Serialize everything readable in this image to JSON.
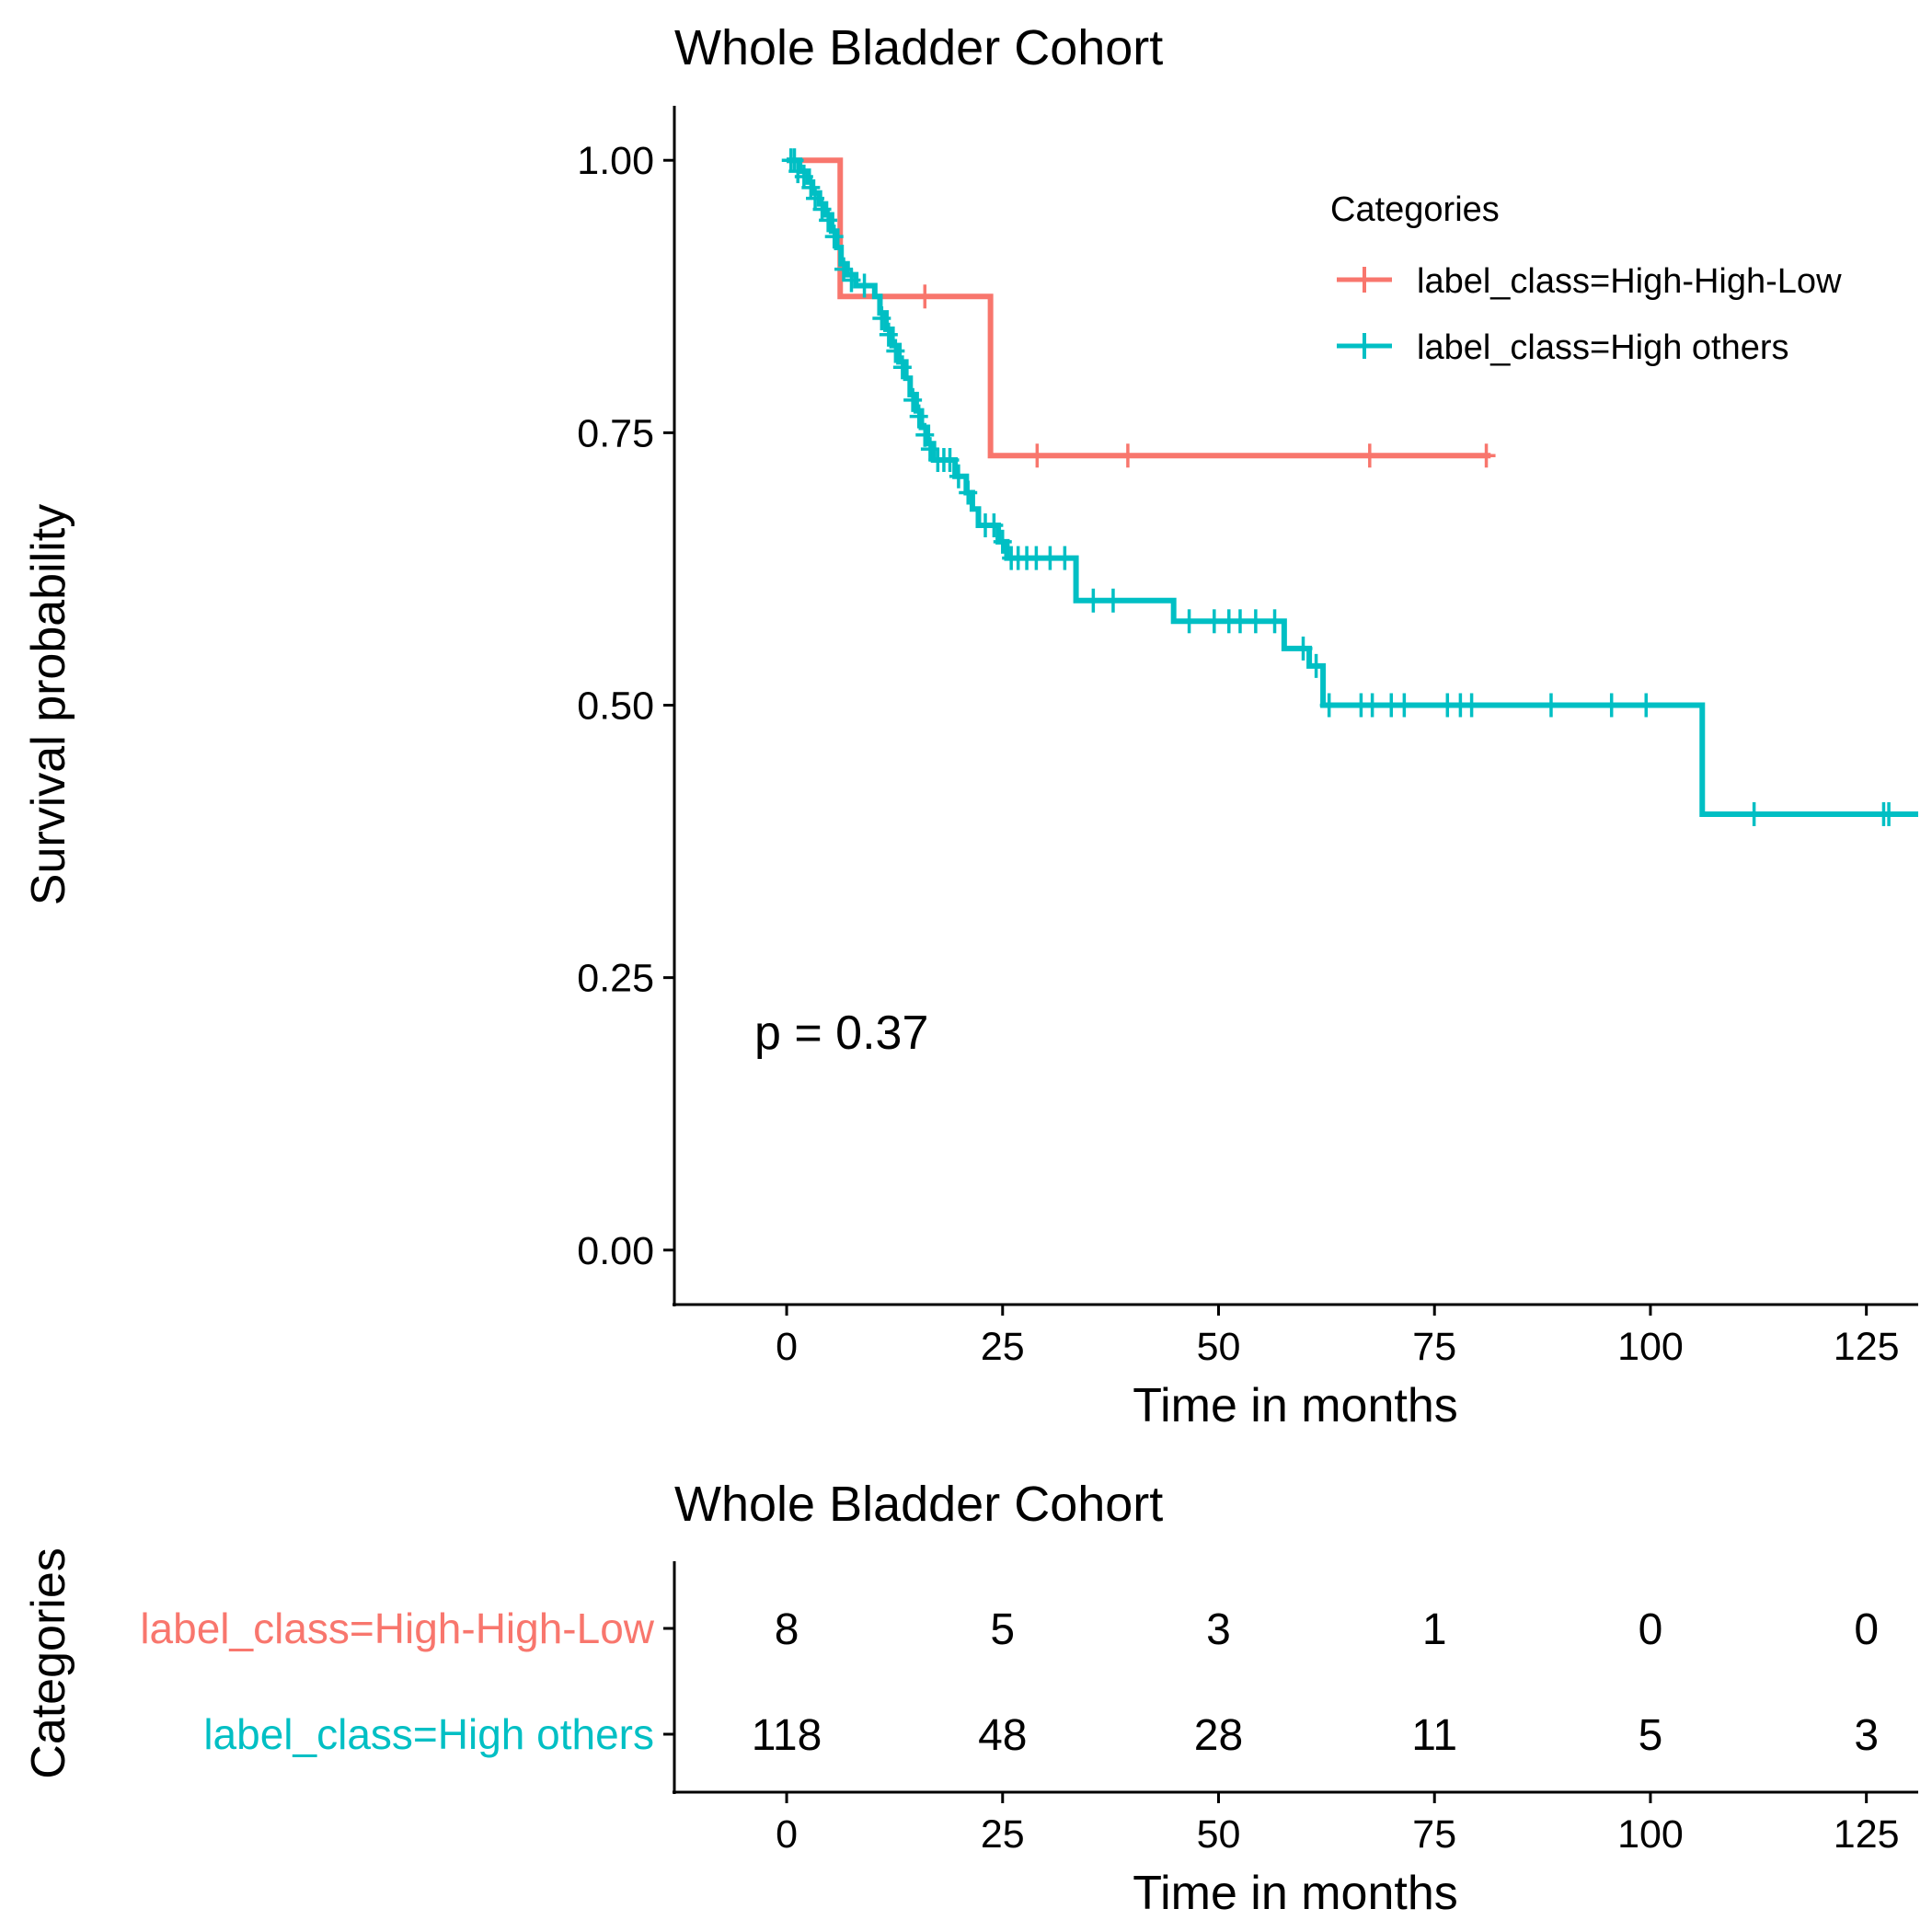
{
  "chart_data": [
    {
      "type": "line",
      "subtype": "kaplan-meier",
      "title": "Whole Bladder Cohort",
      "xlabel": "Time in months",
      "ylabel": "Survival probability",
      "xlim": [
        -13,
        131
      ],
      "ylim": [
        -0.05,
        1.05
      ],
      "x_ticks": [
        "0",
        "25",
        "50",
        "75",
        "100",
        "125"
      ],
      "y_ticks": [
        "0.00",
        "0.25",
        "0.50",
        "0.75",
        "1.00"
      ],
      "grid": false,
      "legend": {
        "title": "Categories",
        "position": "top-right"
      },
      "annotation": "p = 0.37",
      "series": [
        {
          "name": "label_class=High-High-Low",
          "color": "#F8766D",
          "steps": [
            [
              0,
              1.0
            ],
            [
              6.2,
              0.875
            ],
            [
              23.6,
              0.729
            ],
            [
              81.5,
              0.729
            ]
          ],
          "censors": [
            [
              16.0,
              0.875
            ],
            [
              29.0,
              0.729
            ],
            [
              39.5,
              0.729
            ],
            [
              67.5,
              0.729
            ],
            [
              81.0,
              0.729
            ]
          ]
        },
        {
          "name": "label_class=High others",
          "color": "#00BFC4",
          "steps": [
            [
              0,
              1.0
            ],
            [
              1.5,
              0.99
            ],
            [
              2.5,
              0.98
            ],
            [
              3.0,
              0.97
            ],
            [
              3.8,
              0.96
            ],
            [
              4.5,
              0.95
            ],
            [
              5.2,
              0.935
            ],
            [
              5.8,
              0.92
            ],
            [
              6.3,
              0.905
            ],
            [
              7.0,
              0.895
            ],
            [
              8.0,
              0.885
            ],
            [
              10.2,
              0.875
            ],
            [
              10.8,
              0.86
            ],
            [
              11.5,
              0.845
            ],
            [
              12.2,
              0.83
            ],
            [
              13.0,
              0.815
            ],
            [
              13.8,
              0.8
            ],
            [
              14.3,
              0.785
            ],
            [
              15.0,
              0.77
            ],
            [
              15.6,
              0.755
            ],
            [
              16.3,
              0.74
            ],
            [
              17.0,
              0.725
            ],
            [
              19.5,
              0.71
            ],
            [
              20.8,
              0.695
            ],
            [
              21.5,
              0.68
            ],
            [
              22.2,
              0.665
            ],
            [
              24.5,
              0.65
            ],
            [
              25.5,
              0.635
            ],
            [
              33.5,
              0.596
            ],
            [
              44.8,
              0.577
            ],
            [
              57.6,
              0.552
            ],
            [
              60.5,
              0.536
            ],
            [
              62.1,
              0.5
            ],
            [
              106.0,
              0.4
            ],
            [
              131,
              0.4
            ]
          ],
          "censors": [
            [
              0.5,
              1.0
            ],
            [
              0.9,
              1.0
            ],
            [
              1.3,
              0.99
            ],
            [
              2.0,
              0.985
            ],
            [
              2.8,
              0.975
            ],
            [
              3.3,
              0.965
            ],
            [
              4.1,
              0.955
            ],
            [
              4.8,
              0.945
            ],
            [
              5.5,
              0.93
            ],
            [
              6.6,
              0.9
            ],
            [
              7.5,
              0.89
            ],
            [
              9.0,
              0.885
            ],
            [
              11.0,
              0.855
            ],
            [
              11.8,
              0.84
            ],
            [
              12.6,
              0.825
            ],
            [
              13.4,
              0.81
            ],
            [
              14.6,
              0.78
            ],
            [
              15.3,
              0.765
            ],
            [
              16.0,
              0.748
            ],
            [
              16.6,
              0.735
            ],
            [
              17.5,
              0.725
            ],
            [
              18.2,
              0.725
            ],
            [
              18.9,
              0.725
            ],
            [
              19.9,
              0.71
            ],
            [
              21.0,
              0.695
            ],
            [
              23.0,
              0.665
            ],
            [
              24.0,
              0.665
            ],
            [
              25.0,
              0.65
            ],
            [
              26.0,
              0.635
            ],
            [
              26.8,
              0.635
            ],
            [
              27.8,
              0.635
            ],
            [
              28.9,
              0.635
            ],
            [
              30.5,
              0.635
            ],
            [
              32.2,
              0.635
            ],
            [
              35.5,
              0.596
            ],
            [
              37.8,
              0.596
            ],
            [
              46.6,
              0.577
            ],
            [
              49.5,
              0.577
            ],
            [
              51.2,
              0.577
            ],
            [
              52.5,
              0.577
            ],
            [
              54.3,
              0.577
            ],
            [
              56.5,
              0.577
            ],
            [
              59.8,
              0.552
            ],
            [
              61.3,
              0.536
            ],
            [
              62.8,
              0.5
            ],
            [
              66.5,
              0.5
            ],
            [
              67.8,
              0.5
            ],
            [
              70.0,
              0.5
            ],
            [
              71.5,
              0.5
            ],
            [
              76.5,
              0.5
            ],
            [
              78.0,
              0.5
            ],
            [
              79.3,
              0.5
            ],
            [
              88.5,
              0.5
            ],
            [
              95.5,
              0.5
            ],
            [
              99.5,
              0.5
            ],
            [
              112.0,
              0.4
            ],
            [
              127.0,
              0.4
            ],
            [
              127.6,
              0.4
            ]
          ]
        }
      ]
    },
    {
      "type": "table",
      "subtype": "risk-table",
      "title": "Whole Bladder Cohort",
      "xlabel": "Time in months",
      "ylabel": "Categories",
      "xlim": [
        -13,
        131
      ],
      "x_ticks": [
        "0",
        "25",
        "50",
        "75",
        "100",
        "125"
      ],
      "times": [
        0,
        25,
        50,
        75,
        100,
        125
      ],
      "rows": [
        {
          "name": "label_class=High-High-Low",
          "color": "#F8766D",
          "counts": [
            "8",
            "5",
            "3",
            "1",
            "0",
            "0"
          ]
        },
        {
          "name": "label_class=High others",
          "color": "#00BFC4",
          "counts": [
            "118",
            "48",
            "28",
            "11",
            "5",
            "3"
          ]
        }
      ]
    }
  ]
}
